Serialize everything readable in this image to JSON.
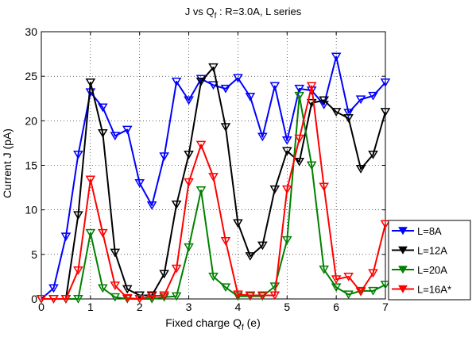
{
  "chart_data": {
    "type": "line",
    "title": {
      "main": "J vs Q",
      "sub": "f",
      "rest": " : R=3.0A,  L series"
    },
    "xlabel": {
      "main": "Fixed charge Q",
      "sub": "f",
      "rest": " (e)"
    },
    "ylabel": "Current J (pA)",
    "xlim": [
      0,
      7
    ],
    "ylim": [
      0,
      30
    ],
    "xticks": [
      0,
      1,
      2,
      3,
      4,
      5,
      6,
      7
    ],
    "yticks": [
      0,
      5,
      10,
      15,
      20,
      25,
      30
    ],
    "grid": true,
    "legend_position": "right-bottom",
    "x": [
      0,
      0.25,
      0.5,
      0.75,
      1.0,
      1.25,
      1.5,
      1.75,
      2.0,
      2.25,
      2.5,
      2.75,
      3.0,
      3.25,
      3.5,
      3.75,
      4.0,
      4.25,
      4.5,
      4.75,
      5.0,
      5.25,
      5.5,
      5.75,
      6.0,
      6.25,
      6.5,
      6.75,
      7.0
    ],
    "series": [
      {
        "name": "L=8A",
        "color": "#0000ff",
        "marker": "triangle-down",
        "values": [
          0,
          1.2,
          7,
          16.2,
          23.2,
          21.5,
          18.3,
          19,
          13,
          10.5,
          16,
          24.4,
          22.3,
          24.7,
          24,
          23.6,
          24.8,
          22.7,
          18.2,
          23.9,
          17.8,
          23.6,
          23.4,
          21.8,
          27.2,
          20.9,
          22.4,
          22.8,
          24.3
        ]
      },
      {
        "name": "L=12A",
        "color": "#000000",
        "marker": "triangle-down",
        "values": [
          0,
          0,
          0,
          9.4,
          24.3,
          18.6,
          5.2,
          1.1,
          0.4,
          0.4,
          2.8,
          10.6,
          16.2,
          24.4,
          26,
          19.3,
          8.5,
          4.8,
          6,
          12.3,
          16.6,
          15.4,
          22,
          22.3,
          21,
          20.3,
          14.6,
          16.2,
          21
        ]
      },
      {
        "name": "L=20A",
        "color": "#008000",
        "marker": "triangle-down",
        "values": [
          0,
          0,
          0,
          0,
          7.4,
          1.2,
          0.2,
          0,
          0,
          0,
          0.2,
          0.3,
          5.8,
          12.2,
          2.5,
          1.3,
          0.3,
          0.3,
          0.3,
          1.4,
          6.6,
          22.8,
          15,
          3.3,
          1.3,
          0.5,
          0.9,
          0.9,
          1.6
        ]
      },
      {
        "name": "L=16A*",
        "color": "#ff0000",
        "marker": "triangle-down",
        "values": [
          0,
          0,
          0,
          3.2,
          13.4,
          7.4,
          1.5,
          0.1,
          0,
          0.3,
          0.4,
          3.4,
          13.1,
          17.3,
          13.7,
          6.5,
          0.5,
          0.4,
          0.4,
          0.4,
          12.3,
          18,
          23.9,
          12.6,
          2.2,
          2.5,
          0.8,
          2.9,
          8.4
        ]
      }
    ]
  }
}
